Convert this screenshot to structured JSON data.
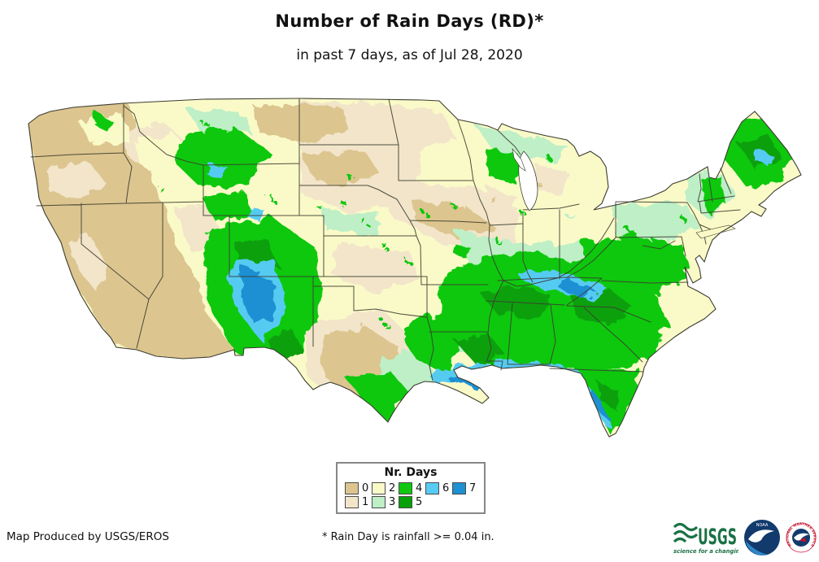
{
  "title": "Number of Rain Days (RD)*",
  "subtitle": "in past 7 days, as of Jul 28, 2020",
  "legend": {
    "title": "Nr. Days",
    "rows": [
      [
        {
          "label": "0",
          "color": "#DCC58F"
        },
        {
          "label": "2",
          "color": "#FAFAC8"
        },
        {
          "label": "4",
          "color": "#0FC80F"
        },
        {
          "label": "6",
          "color": "#57CBF2"
        },
        {
          "label": "7",
          "color": "#1F90D2"
        }
      ],
      [
        {
          "label": "1",
          "color": "#F2E5CA"
        },
        {
          "label": "3",
          "color": "#BEEFC6"
        },
        {
          "label": "5",
          "color": "#08A008"
        }
      ]
    ]
  },
  "footer": {
    "credit": "Map Produced by USGS/EROS",
    "footnote": "* Rain Day is rainfall >= 0.04 in."
  },
  "logos": {
    "usgs": {
      "name": "USGS",
      "tagline": "science for a changing world",
      "color": "#1B7145"
    },
    "noaa": {
      "name": "NOAA",
      "color": "#123A6D"
    },
    "nws": {
      "name": "NATIONAL WEATHER SERVICE",
      "color": "#C8102E"
    }
  },
  "chart_data": {
    "type": "heatmap",
    "title": "Number of Rain Days (RD) in past 7 days, as of Jul 28, 2020",
    "units": "days with rainfall >= 0.04 in",
    "scale": {
      "min": 0,
      "max": 7,
      "colors": [
        "#DCC58F",
        "#F2E5CA",
        "#FAFAC8",
        "#BEEFC6",
        "#0FC80F",
        "#08A008",
        "#57CBF2",
        "#1F90D2"
      ]
    },
    "regions": [
      {
        "area": "Pacific Coast, Great Basin (CA, NV, AZ, WA, OR)",
        "rain_days": "0-1"
      },
      {
        "area": "Northern Plains and upper Midwest",
        "rain_days": "1-2 with 0-day patches"
      },
      {
        "area": "Northern Rockies (MT, ID, WY)",
        "rain_days": "3-4 patches, some 6"
      },
      {
        "area": "Colorado and New Mexico",
        "rain_days": "4-7 core over mountains"
      },
      {
        "area": "West Texas",
        "rain_days": "0-2"
      },
      {
        "area": "South Texas and Gulf Coast (LA, MS, AL)",
        "rain_days": "4-7, 6-7 along coast"
      },
      {
        "area": "Southeast (TN valley, MS, AL, GA, Carolinas)",
        "rain_days": "4-6, blue 6-7 band across Tennessee"
      },
      {
        "area": "Florida",
        "rain_days": "4-7, 6-7 along west coast"
      },
      {
        "area": "Mid-Atlantic and Appalachians",
        "rain_days": "3-4"
      },
      {
        "area": "Northeast, Maine",
        "rain_days": "3-6, heavy 4-6 in Maine"
      }
    ]
  }
}
